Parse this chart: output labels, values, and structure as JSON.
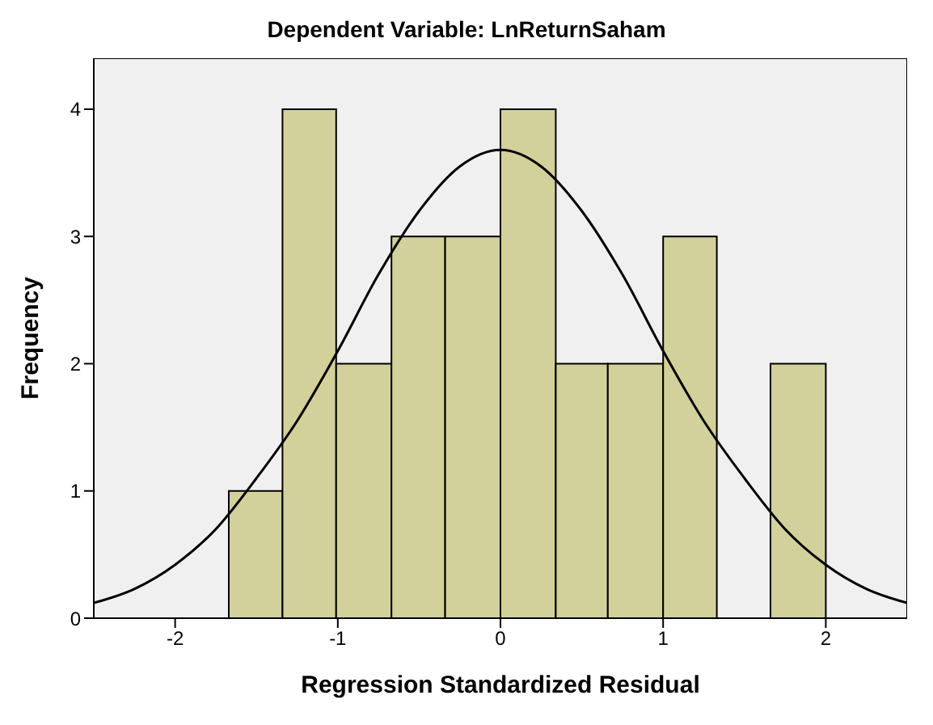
{
  "chart_data": {
    "type": "histogram",
    "title": "Dependent Variable: LnReturnSaham",
    "xlabel": "Regression Standardized Residual",
    "ylabel": "Frequency",
    "bins": [
      -1.67,
      -1.34,
      -1.01,
      -0.67,
      -0.34,
      0,
      0.34,
      0.66,
      1.0,
      1.33,
      1.66,
      2.0
    ],
    "values": [
      1,
      4,
      2,
      3,
      3,
      4,
      2,
      2,
      3,
      0,
      2
    ],
    "color": "#d3d19b",
    "xlim": [
      -2.5,
      2.5
    ],
    "xticks": [
      -2,
      -1,
      0,
      1,
      2
    ],
    "ylim": [
      0,
      4.4
    ],
    "yticks": [
      0,
      1,
      2,
      3,
      4
    ],
    "series": [
      {
        "type": "line",
        "color": "#000000",
        "x": [
          -2.5,
          -2.25,
          -2.0,
          -1.75,
          -1.5,
          -1.25,
          -1.0,
          -0.75,
          -0.5,
          -0.25,
          0,
          0.25,
          0.5,
          0.75,
          1.0,
          1.25,
          1.5,
          1.75,
          2.0,
          2.25,
          2.5
        ],
        "values": [
          0.12,
          0.23,
          0.42,
          0.7,
          1.1,
          1.55,
          2.1,
          2.7,
          3.2,
          3.55,
          3.68,
          3.55,
          3.2,
          2.7,
          2.1,
          1.55,
          1.1,
          0.7,
          0.42,
          0.23,
          0.12
        ]
      }
    ]
  }
}
